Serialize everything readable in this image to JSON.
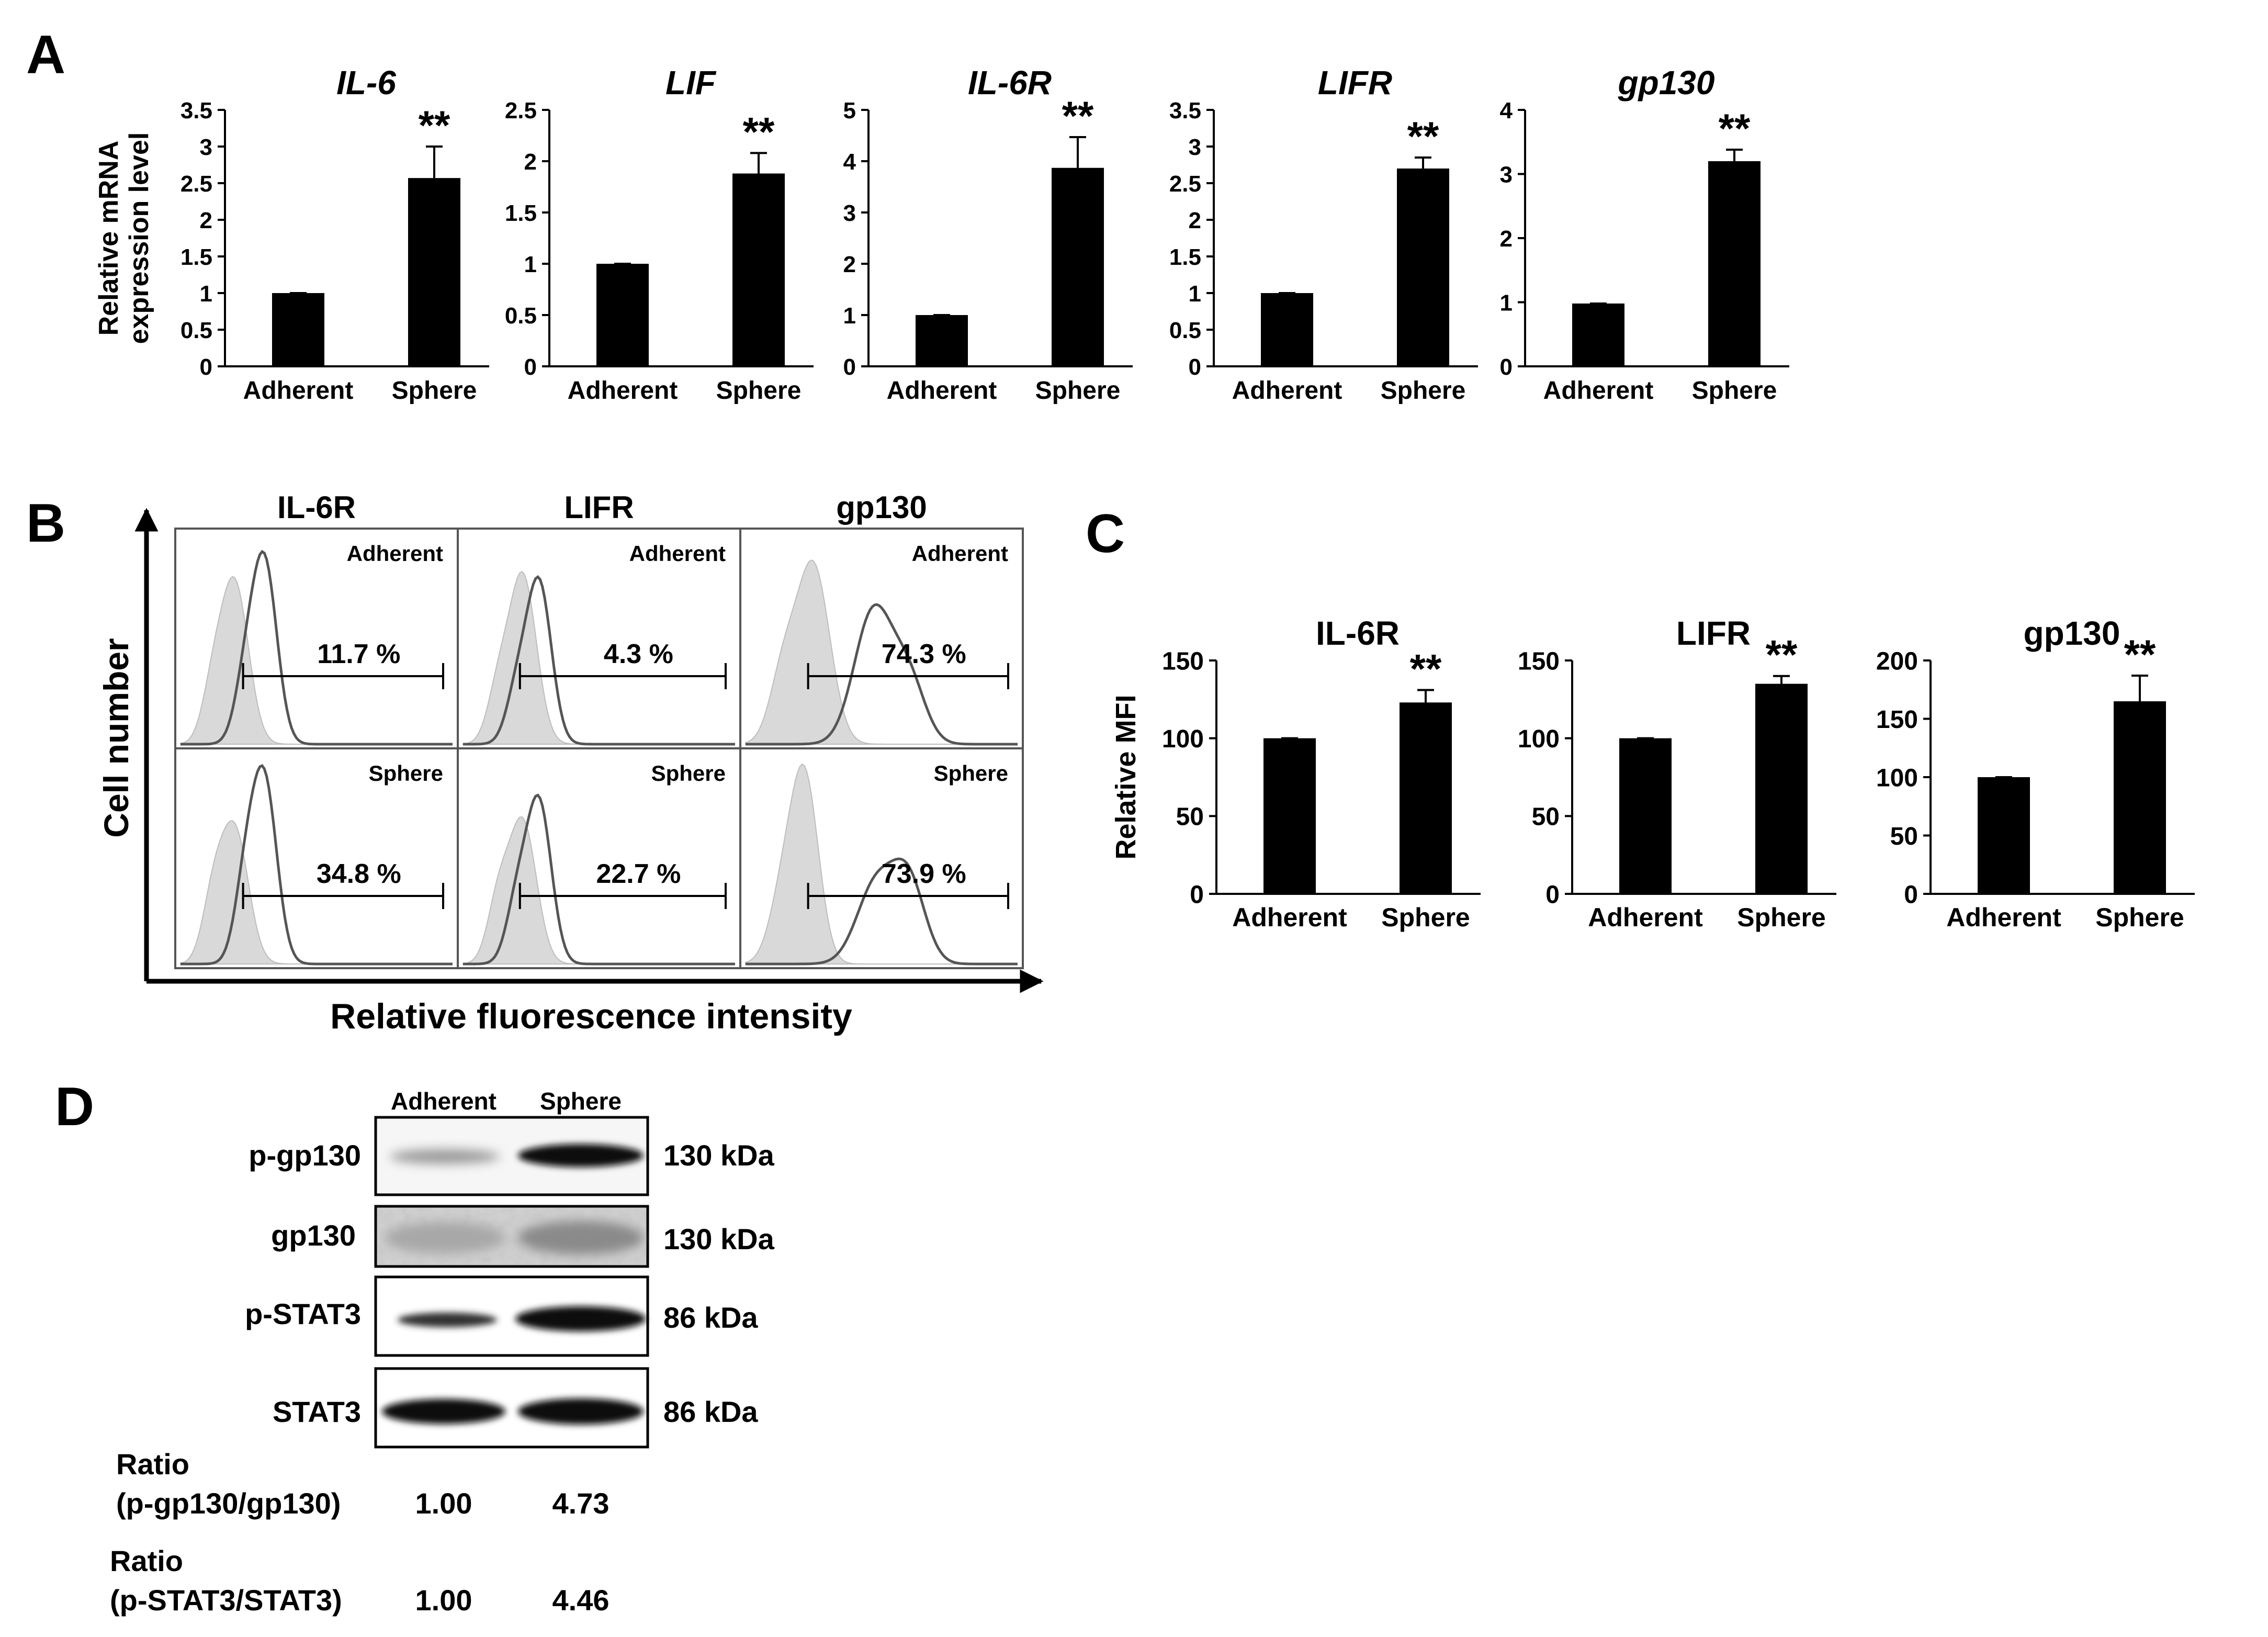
{
  "panel_labels": {
    "A": "A",
    "B": "B",
    "C": "C",
    "D": "D"
  },
  "chart_data": [
    {
      "panel": "A",
      "type": "bar",
      "title": "IL-6",
      "title_style": "italic",
      "ylabel": "Relative mRNA\nexpression level",
      "categories": [
        "Adherent",
        "Sphere"
      ],
      "values": [
        1.0,
        2.57
      ],
      "errors": [
        0.0,
        0.43
      ],
      "ylim": [
        0,
        3.5
      ],
      "yticks": [
        0,
        0.5,
        1,
        1.5,
        2,
        2.5,
        3,
        3.5
      ],
      "ytick_labels": [
        "0",
        "0.5",
        "1",
        "1.5",
        "2",
        "2.5",
        "3",
        "3.5"
      ],
      "annotations": [
        "",
        "**"
      ]
    },
    {
      "panel": "A",
      "type": "bar",
      "title": "LIF",
      "title_style": "italic",
      "ylabel": "",
      "categories": [
        "Adherent",
        "Sphere"
      ],
      "values": [
        1.0,
        1.88
      ],
      "errors": [
        0.0,
        0.2
      ],
      "ylim": [
        0,
        2.5
      ],
      "yticks": [
        0,
        0.5,
        1,
        1.5,
        2,
        2.5
      ],
      "ytick_labels": [
        "0",
        "0.5",
        "1",
        "1.5",
        "2",
        "2.5"
      ],
      "annotations": [
        "",
        "**"
      ]
    },
    {
      "panel": "A",
      "type": "bar",
      "title": "IL-6R",
      "title_style": "italic",
      "ylabel": "",
      "categories": [
        "Adherent",
        "Sphere"
      ],
      "values": [
        1.0,
        3.87
      ],
      "errors": [
        0.0,
        0.6
      ],
      "ylim": [
        0,
        5
      ],
      "yticks": [
        0,
        1,
        2,
        3,
        4,
        5
      ],
      "ytick_labels": [
        "0",
        "1",
        "2",
        "3",
        "4",
        "5"
      ],
      "annotations": [
        "",
        "**"
      ]
    },
    {
      "panel": "A",
      "type": "bar",
      "title": "LIFR",
      "title_style": "italic",
      "ylabel": "",
      "categories": [
        "Adherent",
        "Sphere"
      ],
      "values": [
        1.0,
        2.7
      ],
      "errors": [
        0.0,
        0.15
      ],
      "ylim": [
        0,
        3.5
      ],
      "yticks": [
        0,
        0.5,
        1,
        1.5,
        2,
        2.5,
        3,
        3.5
      ],
      "ytick_labels": [
        "0",
        "0.5",
        "1",
        "1.5",
        "2",
        "2.5",
        "3",
        "3.5"
      ],
      "annotations": [
        "",
        "**"
      ]
    },
    {
      "panel": "A",
      "type": "bar",
      "title": "gp130",
      "title_style": "italic",
      "ylabel": "",
      "categories": [
        "Adherent",
        "Sphere"
      ],
      "values": [
        0.98,
        3.2
      ],
      "errors": [
        0.0,
        0.18
      ],
      "ylim": [
        0,
        4
      ],
      "yticks": [
        0,
        1,
        2,
        3,
        4
      ],
      "ytick_labels": [
        "0",
        "1",
        "2",
        "3",
        "4"
      ],
      "annotations": [
        "",
        "**"
      ]
    },
    {
      "panel": "C",
      "type": "bar",
      "title": "IL-6R",
      "title_style": "normal",
      "ylabel": "Relative MFI",
      "categories": [
        "Adherent",
        "Sphere"
      ],
      "values": [
        100,
        123
      ],
      "errors": [
        0,
        8
      ],
      "ylim": [
        0,
        150
      ],
      "yticks": [
        0,
        50,
        100,
        150
      ],
      "ytick_labels": [
        "0",
        "50",
        "100",
        "150"
      ],
      "annotations": [
        "",
        "**"
      ]
    },
    {
      "panel": "C",
      "type": "bar",
      "title": "LIFR",
      "title_style": "normal",
      "ylabel": "",
      "categories": [
        "Adherent",
        "Sphere"
      ],
      "values": [
        100,
        135
      ],
      "errors": [
        0,
        5
      ],
      "ylim": [
        0,
        150
      ],
      "yticks": [
        0,
        50,
        100,
        150
      ],
      "ytick_labels": [
        "0",
        "50",
        "100",
        "150"
      ],
      "annotations": [
        "",
        "**"
      ]
    },
    {
      "panel": "C",
      "type": "bar",
      "title": "gp130",
      "title_style": "normal",
      "ylabel": "",
      "categories": [
        "Adherent",
        "Sphere"
      ],
      "values": [
        100,
        165
      ],
      "errors": [
        0,
        22
      ],
      "ylim": [
        0,
        200
      ],
      "yticks": [
        0,
        50,
        100,
        150,
        200
      ],
      "ytick_labels": [
        "0",
        "50",
        "100",
        "150",
        "200"
      ],
      "annotations": [
        "",
        "**"
      ]
    }
  ],
  "flow": {
    "ylabel": "Cell number",
    "xlabel": "Relative fluorescence intensity",
    "columns": [
      "IL-6R",
      "LIFR",
      "gp130"
    ],
    "rows": [
      "Adherent",
      "Sphere"
    ],
    "percentages": [
      [
        "11.7 %",
        "4.3 %",
        "74.3 %"
      ],
      [
        "34.8 %",
        "22.7 %",
        "73.9 %"
      ]
    ]
  },
  "western": {
    "lanes": [
      "Adherent",
      "Sphere"
    ],
    "blots": [
      {
        "label": "p-gp130",
        "size": "130 kDa"
      },
      {
        "label": "gp130",
        "size": "130 kDa"
      },
      {
        "label": "p-STAT3",
        "size": "86 kDa"
      },
      {
        "label": "STAT3",
        "size": "86 kDa"
      }
    ],
    "ratios": [
      {
        "label1": "Ratio",
        "label2": "(p-gp130/gp130)",
        "values": [
          "1.00",
          "4.73"
        ]
      },
      {
        "label1": "Ratio",
        "label2": "(p-STAT3/STAT3)",
        "values": [
          "1.00",
          "4.46"
        ]
      }
    ]
  }
}
